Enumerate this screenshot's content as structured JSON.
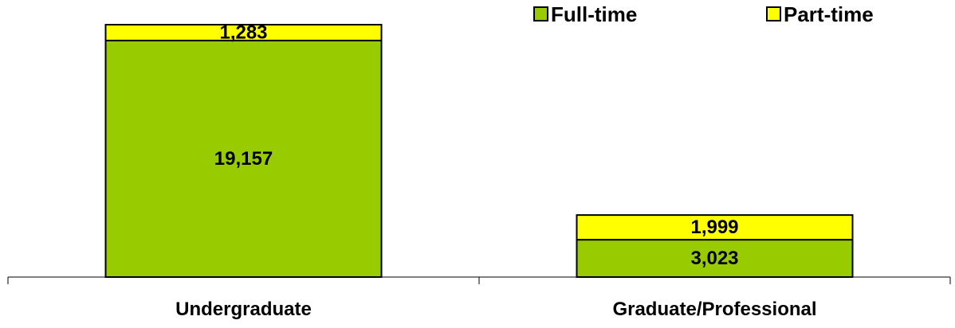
{
  "chart_data": {
    "type": "bar",
    "stacked": true,
    "categories": [
      "Undergraduate",
      "Graduate/Professional"
    ],
    "series": [
      {
        "name": "Full-time",
        "values": [
          19157,
          3023
        ],
        "value_labels": [
          "19,157",
          "3,023"
        ],
        "color": "#99CC00"
      },
      {
        "name": "Part-time",
        "values": [
          1283,
          1999
        ],
        "value_labels": [
          "1,283",
          "1,999"
        ],
        "color": "#FFFF00"
      }
    ],
    "title": "",
    "xlabel": "",
    "ylabel": "",
    "ylim": [
      0,
      20440
    ],
    "grid": false,
    "legend": "top-right"
  }
}
